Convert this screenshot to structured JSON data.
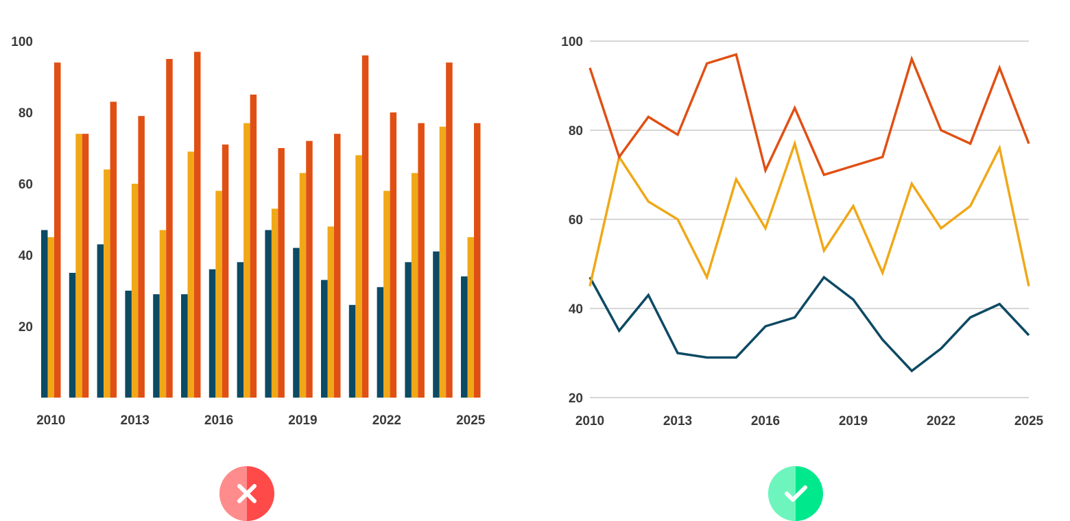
{
  "colors": {
    "series_1": "#0d4a63",
    "series_2": "#f0a818",
    "series_3": "#e05014",
    "grid": "#c8c8c8",
    "text": "#3a3a3a",
    "wrong_badge": "#ff4a4a",
    "right_badge": "#00e88c"
  },
  "badges": {
    "left": {
      "icon": "cross-icon",
      "meaning": "incorrect"
    },
    "right": {
      "icon": "check-icon",
      "meaning": "correct"
    }
  },
  "chart_data": [
    {
      "type": "bar",
      "title": "",
      "xlabel": "",
      "ylabel": "",
      "categories": [
        "2010",
        "2011",
        "2012",
        "2013",
        "2014",
        "2015",
        "2016",
        "2017",
        "2018",
        "2019",
        "2020",
        "2021",
        "2022",
        "2023",
        "2024",
        "2025"
      ],
      "x_tick_labels": [
        "2010",
        "2013",
        "2016",
        "2019",
        "2022",
        "2025"
      ],
      "y_tick_labels": [
        "20",
        "40",
        "60",
        "80",
        "100"
      ],
      "ylim": [
        0,
        100
      ],
      "grid": false,
      "series": [
        {
          "values": [
            47,
            35,
            43,
            30,
            29,
            29,
            36,
            38,
            47,
            42,
            33,
            26,
            31,
            38,
            41,
            34
          ]
        },
        {
          "values": [
            45,
            74,
            64,
            60,
            47,
            69,
            58,
            77,
            53,
            63,
            48,
            68,
            58,
            63,
            76,
            45
          ]
        },
        {
          "values": [
            94,
            74,
            83,
            79,
            95,
            97,
            71,
            85,
            70,
            72,
            74,
            96,
            80,
            77,
            94,
            77
          ]
        }
      ]
    },
    {
      "type": "line",
      "title": "",
      "xlabel": "",
      "ylabel": "",
      "x": [
        2010,
        2011,
        2012,
        2013,
        2014,
        2015,
        2016,
        2017,
        2018,
        2019,
        2020,
        2021,
        2022,
        2023,
        2024,
        2025
      ],
      "x_tick_labels": [
        "2010",
        "2013",
        "2016",
        "2019",
        "2022",
        "2025"
      ],
      "y_tick_labels": [
        "20",
        "40",
        "60",
        "80",
        "100"
      ],
      "ylim": [
        20,
        100
      ],
      "grid": true,
      "series": [
        {
          "values": [
            47,
            35,
            43,
            30,
            29,
            29,
            36,
            38,
            47,
            42,
            33,
            26,
            31,
            38,
            41,
            34
          ]
        },
        {
          "values": [
            45,
            74,
            64,
            60,
            47,
            69,
            58,
            77,
            53,
            63,
            48,
            68,
            58,
            63,
            76,
            45
          ]
        },
        {
          "values": [
            94,
            74,
            83,
            79,
            95,
            97,
            71,
            85,
            70,
            72,
            74,
            96,
            80,
            77,
            94,
            77
          ]
        }
      ]
    }
  ]
}
